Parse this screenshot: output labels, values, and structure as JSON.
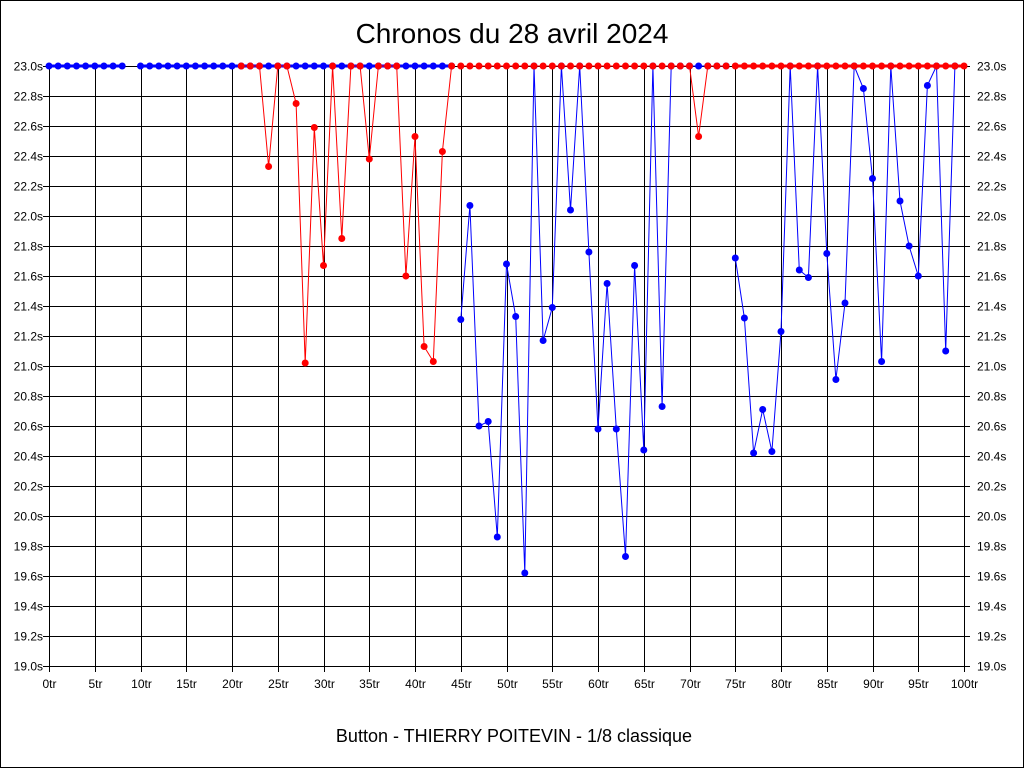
{
  "chart_data": {
    "type": "line",
    "title": "Chronos du 28 avril 2024",
    "caption": "Button - THIERRY POITEVIN - 1/8 classique",
    "xlabel": "",
    "ylabel": "",
    "xlim": [
      0,
      100
    ],
    "ylim": [
      19.0,
      23.0
    ],
    "grid": true,
    "y_ticks": [
      "19.0s",
      "19.2s",
      "19.4s",
      "19.6s",
      "19.8s",
      "20.0s",
      "20.2s",
      "20.4s",
      "20.6s",
      "20.8s",
      "21.0s",
      "21.2s",
      "21.4s",
      "21.6s",
      "21.8s",
      "22.0s",
      "22.2s",
      "22.4s",
      "22.6s",
      "22.8s",
      "23.0s"
    ],
    "x_ticks": [
      "0tr",
      "5tr",
      "10tr",
      "15tr",
      "20tr",
      "25tr",
      "30tr",
      "35tr",
      "40tr",
      "45tr",
      "50tr",
      "55tr",
      "60tr",
      "65tr",
      "70tr",
      "75tr",
      "80tr",
      "85tr",
      "90tr",
      "95tr",
      "100tr"
    ],
    "series": [
      {
        "color": "#0000ff",
        "segments": [
          [
            [
              0,
              23.0
            ],
            [
              1,
              23.0
            ],
            [
              2,
              23.0
            ],
            [
              3,
              23.0
            ],
            [
              4,
              23.0
            ],
            [
              5,
              23.0
            ],
            [
              6,
              23.0
            ],
            [
              7,
              23.0
            ],
            [
              8,
              23.0
            ]
          ],
          [
            [
              10,
              23.0
            ],
            [
              11,
              23.0
            ],
            [
              12,
              23.0
            ],
            [
              13,
              23.0
            ],
            [
              14,
              23.0
            ],
            [
              15,
              23.0
            ],
            [
              16,
              23.0
            ],
            [
              17,
              23.0
            ],
            [
              18,
              23.0
            ],
            [
              19,
              23.0
            ],
            [
              20,
              23.0
            ],
            [
              21,
              23.0
            ],
            [
              22,
              23.0
            ],
            [
              23,
              23.0
            ],
            [
              24,
              23.0
            ],
            [
              25,
              23.0
            ],
            [
              26,
              23.0
            ],
            [
              27,
              23.0
            ],
            [
              28,
              23.0
            ],
            [
              29,
              23.0
            ],
            [
              30,
              23.0
            ],
            [
              31,
              23.0
            ],
            [
              32,
              23.0
            ],
            [
              33,
              23.0
            ],
            [
              34,
              23.0
            ],
            [
              35,
              23.0
            ],
            [
              36,
              23.0
            ],
            [
              37,
              23.0
            ],
            [
              38,
              23.0
            ],
            [
              39,
              23.0
            ],
            [
              40,
              23.0
            ],
            [
              41,
              23.0
            ],
            [
              42,
              23.0
            ],
            [
              43,
              23.0
            ],
            [
              44,
              23.0
            ]
          ],
          [
            [
              45,
              21.31
            ],
            [
              46,
              22.07
            ],
            [
              47,
              20.6
            ],
            [
              48,
              20.63
            ],
            [
              49,
              19.86
            ],
            [
              50,
              21.68
            ],
            [
              51,
              21.33
            ],
            [
              52,
              19.62
            ],
            [
              53,
              23.0
            ],
            [
              54,
              21.17
            ],
            [
              55,
              21.39
            ],
            [
              56,
              23.0
            ],
            [
              57,
              22.04
            ],
            [
              58,
              23.0
            ],
            [
              59,
              21.76
            ],
            [
              60,
              20.58
            ],
            [
              61,
              21.55
            ],
            [
              62,
              20.58
            ],
            [
              63,
              19.73
            ],
            [
              64,
              21.67
            ],
            [
              65,
              20.44
            ],
            [
              66,
              23.0
            ],
            [
              67,
              20.73
            ],
            [
              68,
              23.0
            ],
            [
              69,
              23.0
            ],
            [
              70,
              23.0
            ],
            [
              71,
              23.0
            ],
            [
              72,
              23.0
            ],
            [
              73,
              23.0
            ],
            [
              74,
              23.0
            ]
          ],
          [
            [
              75,
              21.72
            ],
            [
              76,
              21.32
            ],
            [
              77,
              20.42
            ],
            [
              78,
              20.71
            ],
            [
              79,
              20.43
            ],
            [
              80,
              21.23
            ],
            [
              81,
              23.0
            ],
            [
              82,
              21.64
            ],
            [
              83,
              21.59
            ],
            [
              84,
              23.0
            ],
            [
              85,
              21.75
            ],
            [
              86,
              20.91
            ],
            [
              87,
              21.42
            ],
            [
              88,
              23.0
            ],
            [
              89,
              22.85
            ],
            [
              90,
              22.25
            ],
            [
              91,
              21.03
            ],
            [
              92,
              23.0
            ],
            [
              93,
              22.1
            ],
            [
              94,
              21.8
            ],
            [
              95,
              21.6
            ],
            [
              96,
              22.87
            ],
            [
              97,
              23.0
            ],
            [
              98,
              21.1
            ],
            [
              99,
              23.0
            ]
          ]
        ]
      },
      {
        "color": "#ff0000",
        "segments": [
          [
            [
              21,
              23.0
            ],
            [
              22,
              23.0
            ],
            [
              23,
              23.0
            ],
            [
              24,
              22.33
            ],
            [
              25,
              23.0
            ],
            [
              26,
              23.0
            ],
            [
              27,
              22.75
            ],
            [
              28,
              21.02
            ],
            [
              29,
              22.59
            ],
            [
              30,
              21.67
            ],
            [
              31,
              23.0
            ],
            [
              32,
              21.85
            ],
            [
              33,
              23.0
            ],
            [
              34,
              23.0
            ],
            [
              35,
              22.38
            ],
            [
              36,
              23.0
            ],
            [
              37,
              23.0
            ],
            [
              38,
              23.0
            ],
            [
              39,
              21.6
            ],
            [
              40,
              22.53
            ],
            [
              41,
              21.13
            ],
            [
              42,
              21.03
            ],
            [
              43,
              22.43
            ],
            [
              44,
              23.0
            ]
          ],
          [
            [
              45,
              23.0
            ],
            [
              46,
              23.0
            ],
            [
              47,
              23.0
            ],
            [
              48,
              23.0
            ],
            [
              49,
              23.0
            ],
            [
              50,
              23.0
            ],
            [
              51,
              23.0
            ],
            [
              52,
              23.0
            ],
            [
              53,
              23.0
            ],
            [
              54,
              23.0
            ],
            [
              55,
              23.0
            ],
            [
              56,
              23.0
            ],
            [
              57,
              23.0
            ],
            [
              58,
              23.0
            ],
            [
              59,
              23.0
            ],
            [
              60,
              23.0
            ],
            [
              61,
              23.0
            ],
            [
              62,
              23.0
            ],
            [
              63,
              23.0
            ],
            [
              64,
              23.0
            ],
            [
              65,
              23.0
            ],
            [
              66,
              23.0
            ],
            [
              67,
              23.0
            ],
            [
              68,
              23.0
            ],
            [
              69,
              23.0
            ],
            [
              70,
              23.0
            ],
            [
              71,
              22.53
            ],
            [
              72,
              23.0
            ],
            [
              73,
              23.0
            ],
            [
              74,
              23.0
            ]
          ],
          [
            [
              75,
              23.0
            ],
            [
              76,
              23.0
            ],
            [
              77,
              23.0
            ],
            [
              78,
              23.0
            ],
            [
              79,
              23.0
            ],
            [
              80,
              23.0
            ],
            [
              81,
              23.0
            ],
            [
              82,
              23.0
            ],
            [
              83,
              23.0
            ],
            [
              84,
              23.0
            ],
            [
              85,
              23.0
            ],
            [
              86,
              23.0
            ],
            [
              87,
              23.0
            ],
            [
              88,
              23.0
            ],
            [
              89,
              23.0
            ],
            [
              90,
              23.0
            ],
            [
              91,
              23.0
            ],
            [
              92,
              23.0
            ],
            [
              93,
              23.0
            ],
            [
              94,
              23.0
            ],
            [
              95,
              23.0
            ],
            [
              96,
              23.0
            ],
            [
              97,
              23.0
            ],
            [
              98,
              23.0
            ],
            [
              99,
              23.0
            ],
            [
              100,
              23.0
            ]
          ]
        ]
      }
    ]
  }
}
